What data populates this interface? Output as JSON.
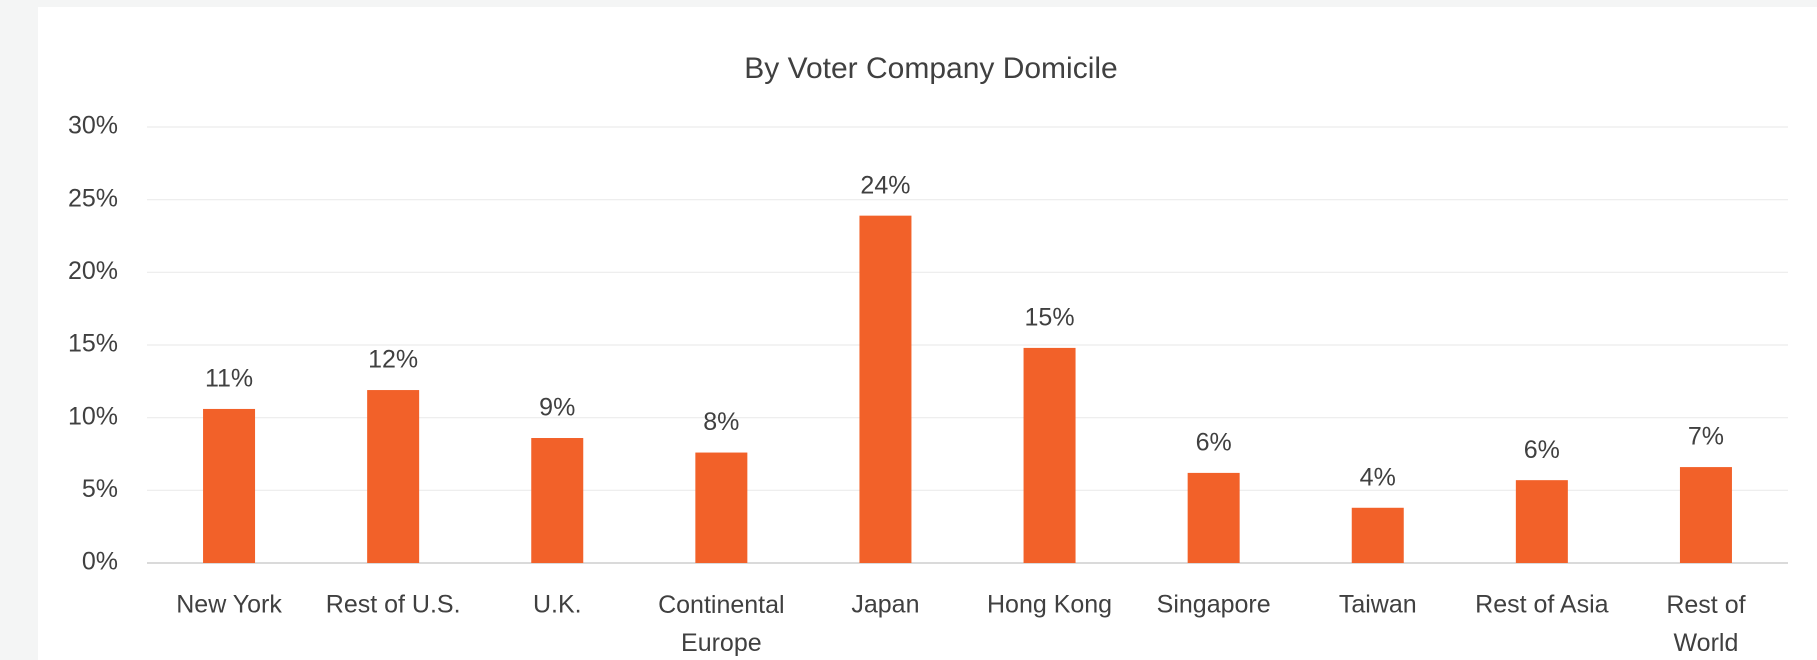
{
  "chart_data": {
    "type": "bar",
    "title": "By Voter Company Domicile",
    "categories": [
      "New York",
      "Rest of U.S.",
      "U.K.",
      "Continental Europe",
      "Japan",
      "Hong Kong",
      "Singapore",
      "Taiwan",
      "Rest of Asia",
      "Rest of World"
    ],
    "values": [
      10.6,
      11.9,
      8.6,
      7.6,
      23.9,
      14.8,
      6.2,
      3.8,
      5.7,
      6.6
    ],
    "value_labels": [
      "11%",
      "12%",
      "9%",
      "8%",
      "24%",
      "15%",
      "6%",
      "4%",
      "6%",
      "7%"
    ],
    "color": "#f26129",
    "ylim": [
      0,
      30
    ],
    "yticks": [
      {
        "value": 0,
        "label": "0%"
      },
      {
        "value": 5,
        "label": "5%"
      },
      {
        "value": 10,
        "label": "10%"
      },
      {
        "value": 15,
        "label": "15%"
      },
      {
        "value": 20,
        "label": "20%"
      },
      {
        "value": 25,
        "label": "25%"
      },
      {
        "value": 30,
        "label": "30%"
      }
    ],
    "grid": true
  }
}
